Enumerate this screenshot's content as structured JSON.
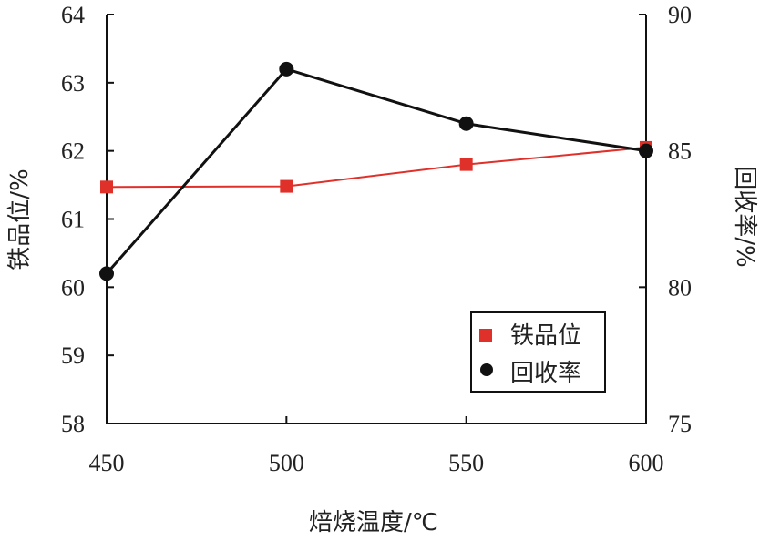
{
  "chart_data": {
    "type": "line",
    "xlabel": "焙烧温度/℃",
    "ylabel_left": "铁品位/%",
    "ylabel_right": "回收率/%",
    "x_ticks": [
      "450",
      "500",
      "550",
      "600"
    ],
    "y_left_ticks": [
      "58",
      "59",
      "60",
      "61",
      "62",
      "63",
      "64"
    ],
    "y_right_ticks": [
      "75",
      "80",
      "85",
      "90"
    ],
    "xlim": [
      450,
      600
    ],
    "ylim_left": [
      58,
      64
    ],
    "ylim_right": [
      75,
      90
    ],
    "grid": false,
    "legend_position": "bottom-right",
    "series": [
      {
        "name": "铁品位",
        "axis": "left",
        "marker": "square",
        "color": "#e0302a",
        "x": [
          450,
          500,
          550,
          600
        ],
        "y": [
          61.47,
          61.48,
          61.8,
          62.05
        ]
      },
      {
        "name": "回收率",
        "axis": "right",
        "marker": "circle",
        "color": "#111111",
        "x": [
          450,
          500,
          550,
          600
        ],
        "y": [
          80.5,
          88.0,
          86.0,
          85.0
        ]
      }
    ]
  }
}
